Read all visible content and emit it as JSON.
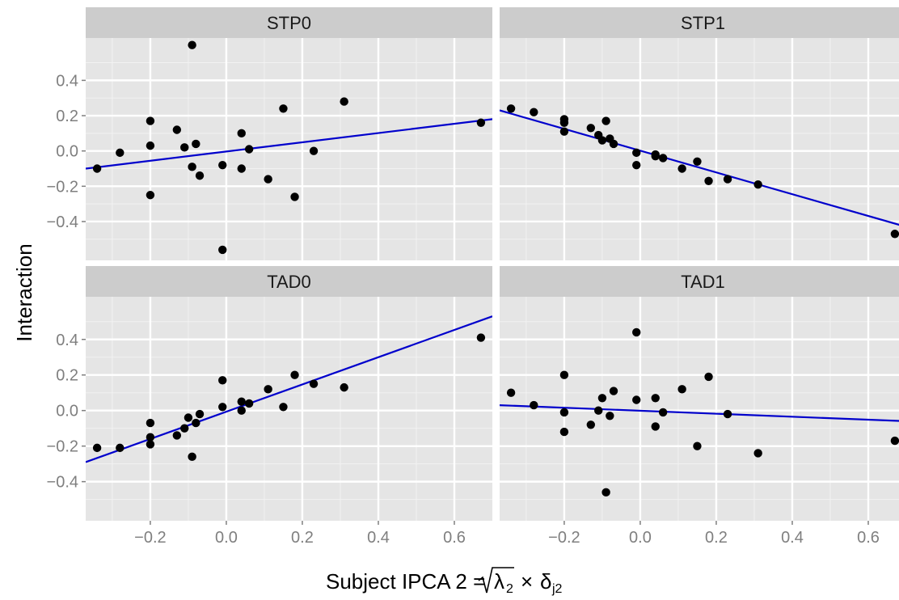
{
  "chart_data": {
    "type": "scatter",
    "title": "",
    "xlabel_parts": {
      "prefix": "Subject IPCA 2 = ",
      "radical_symbol": "λ",
      "radical_sub": "2",
      "times": "×",
      "delta_symbol": "δ",
      "delta_sub": "j2"
    },
    "ylabel": "Interaction",
    "xlim": [
      -0.37,
      0.7
    ],
    "ylim": [
      -0.62,
      0.64
    ],
    "x_ticks": [
      -0.2,
      0.0,
      0.2,
      0.4,
      0.6
    ],
    "x_tick_labels": [
      "−0.2",
      "0.0",
      "0.2",
      "0.4",
      "0.6"
    ],
    "y_ticks": [
      -0.4,
      -0.2,
      0.0,
      0.2,
      0.4
    ],
    "y_tick_labels": [
      "−0.4",
      "−0.2",
      "0.0",
      "0.2",
      "0.4"
    ],
    "grid": true,
    "colors": {
      "panel_bg": "#e5e5e5",
      "grid_major": "#ffffff",
      "grid_minor": "#f2f2f2",
      "strip_bg": "#cccccc",
      "point": "#000000",
      "fit_line": "#0000cc",
      "tick_text": "#7f7f7f",
      "label_text": "#000000"
    },
    "panels": [
      {
        "name": "STP0",
        "line": [
          [
            -0.37,
            -0.1
          ],
          [
            0.7,
            0.18
          ]
        ],
        "points": [
          [
            -0.34,
            -0.1
          ],
          [
            -0.28,
            -0.01
          ],
          [
            -0.2,
            0.03
          ],
          [
            -0.2,
            0.17
          ],
          [
            -0.2,
            -0.25
          ],
          [
            -0.13,
            0.12
          ],
          [
            -0.11,
            0.02
          ],
          [
            -0.09,
            0.6
          ],
          [
            -0.09,
            -0.09
          ],
          [
            -0.08,
            0.04
          ],
          [
            -0.07,
            -0.14
          ],
          [
            -0.01,
            -0.56
          ],
          [
            -0.01,
            -0.08
          ],
          [
            0.04,
            0.1
          ],
          [
            0.04,
            -0.1
          ],
          [
            0.06,
            0.01
          ],
          [
            0.11,
            -0.16
          ],
          [
            0.15,
            0.24
          ],
          [
            0.18,
            -0.26
          ],
          [
            0.23,
            0.0
          ],
          [
            0.31,
            0.28
          ],
          [
            0.67,
            0.16
          ]
        ]
      },
      {
        "name": "STP1",
        "line": [
          [
            -0.37,
            0.23
          ],
          [
            0.7,
            -0.43
          ]
        ],
        "points": [
          [
            -0.34,
            0.24
          ],
          [
            -0.28,
            0.22
          ],
          [
            -0.2,
            0.18
          ],
          [
            -0.2,
            0.16
          ],
          [
            -0.2,
            0.11
          ],
          [
            -0.13,
            0.13
          ],
          [
            -0.11,
            0.09
          ],
          [
            -0.1,
            0.06
          ],
          [
            -0.09,
            0.17
          ],
          [
            -0.08,
            0.07
          ],
          [
            -0.07,
            0.04
          ],
          [
            -0.01,
            -0.01
          ],
          [
            -0.01,
            -0.08
          ],
          [
            0.04,
            -0.03
          ],
          [
            0.04,
            -0.02
          ],
          [
            0.06,
            -0.04
          ],
          [
            0.11,
            -0.1
          ],
          [
            0.15,
            -0.06
          ],
          [
            0.18,
            -0.17
          ],
          [
            0.23,
            -0.16
          ],
          [
            0.31,
            -0.19
          ],
          [
            0.67,
            -0.47
          ]
        ]
      },
      {
        "name": "TAD0",
        "line": [
          [
            -0.37,
            -0.29
          ],
          [
            0.7,
            0.53
          ]
        ],
        "points": [
          [
            -0.34,
            -0.21
          ],
          [
            -0.28,
            -0.21
          ],
          [
            -0.2,
            -0.15
          ],
          [
            -0.2,
            -0.19
          ],
          [
            -0.2,
            -0.07
          ],
          [
            -0.13,
            -0.14
          ],
          [
            -0.11,
            -0.1
          ],
          [
            -0.1,
            -0.04
          ],
          [
            -0.09,
            -0.26
          ],
          [
            -0.08,
            -0.07
          ],
          [
            -0.07,
            -0.02
          ],
          [
            -0.01,
            0.17
          ],
          [
            -0.01,
            0.02
          ],
          [
            0.04,
            0.05
          ],
          [
            0.04,
            0.0
          ],
          [
            0.06,
            0.04
          ],
          [
            0.11,
            0.12
          ],
          [
            0.15,
            0.02
          ],
          [
            0.18,
            0.2
          ],
          [
            0.23,
            0.15
          ],
          [
            0.31,
            0.13
          ],
          [
            0.67,
            0.41
          ]
        ]
      },
      {
        "name": "TAD1",
        "line": [
          [
            -0.37,
            0.03
          ],
          [
            0.7,
            -0.06
          ]
        ],
        "points": [
          [
            -0.34,
            0.1
          ],
          [
            -0.28,
            0.03
          ],
          [
            -0.2,
            0.2
          ],
          [
            -0.2,
            -0.01
          ],
          [
            -0.2,
            -0.12
          ],
          [
            -0.13,
            -0.08
          ],
          [
            -0.11,
            0.0
          ],
          [
            -0.1,
            0.07
          ],
          [
            -0.09,
            -0.46
          ],
          [
            -0.08,
            -0.03
          ],
          [
            -0.07,
            0.11
          ],
          [
            -0.01,
            0.44
          ],
          [
            -0.01,
            0.06
          ],
          [
            0.04,
            0.07
          ],
          [
            0.04,
            -0.09
          ],
          [
            0.06,
            -0.01
          ],
          [
            0.11,
            0.12
          ],
          [
            0.15,
            -0.2
          ],
          [
            0.18,
            0.19
          ],
          [
            0.23,
            -0.02
          ],
          [
            0.31,
            -0.24
          ],
          [
            0.67,
            -0.17
          ]
        ]
      }
    ]
  }
}
